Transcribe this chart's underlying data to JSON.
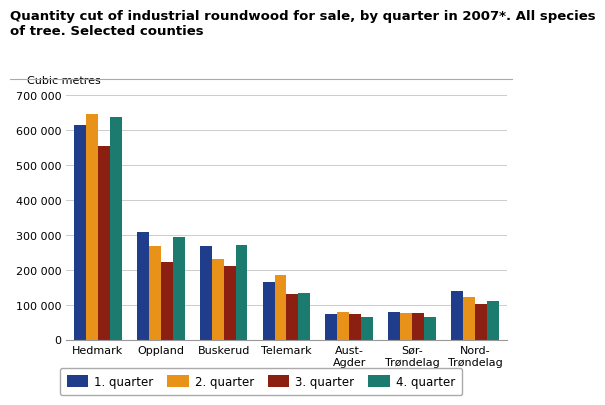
{
  "title_line1": "Quantity cut of industrial roundwood for sale, by quarter in 2007*. All species",
  "title_line2": "of tree. Selected counties",
  "ylabel": "Cubic metres",
  "categories": [
    "Hedmark",
    "Oppland",
    "Buskerud",
    "Telemark",
    "Aust-\nAgder",
    "Sør-\nTrøndelag",
    "Nord-\nTrøndelag"
  ],
  "series": {
    "1. quarter": [
      615000,
      308000,
      268000,
      165000,
      73000,
      80000,
      138000
    ],
    "2. quarter": [
      645000,
      267000,
      230000,
      185000,
      78000,
      75000,
      122000
    ],
    "3. quarter": [
      553000,
      223000,
      212000,
      130000,
      73000,
      75000,
      103000
    ],
    "4. quarter": [
      636000,
      295000,
      272000,
      134000,
      65000,
      65000,
      110000
    ]
  },
  "colors": {
    "1. quarter": "#1F3D8B",
    "2. quarter": "#E8921A",
    "3. quarter": "#8B2012",
    "4. quarter": "#1A7B6E"
  },
  "ylim": [
    0,
    700000
  ],
  "yticks": [
    0,
    100000,
    200000,
    300000,
    400000,
    500000,
    600000,
    700000
  ],
  "background_color": "#ffffff",
  "grid_color": "#cccccc",
  "title_fontsize": 9.5,
  "legend_fontsize": 8.5,
  "axis_label_fontsize": 8,
  "tick_fontsize": 8
}
